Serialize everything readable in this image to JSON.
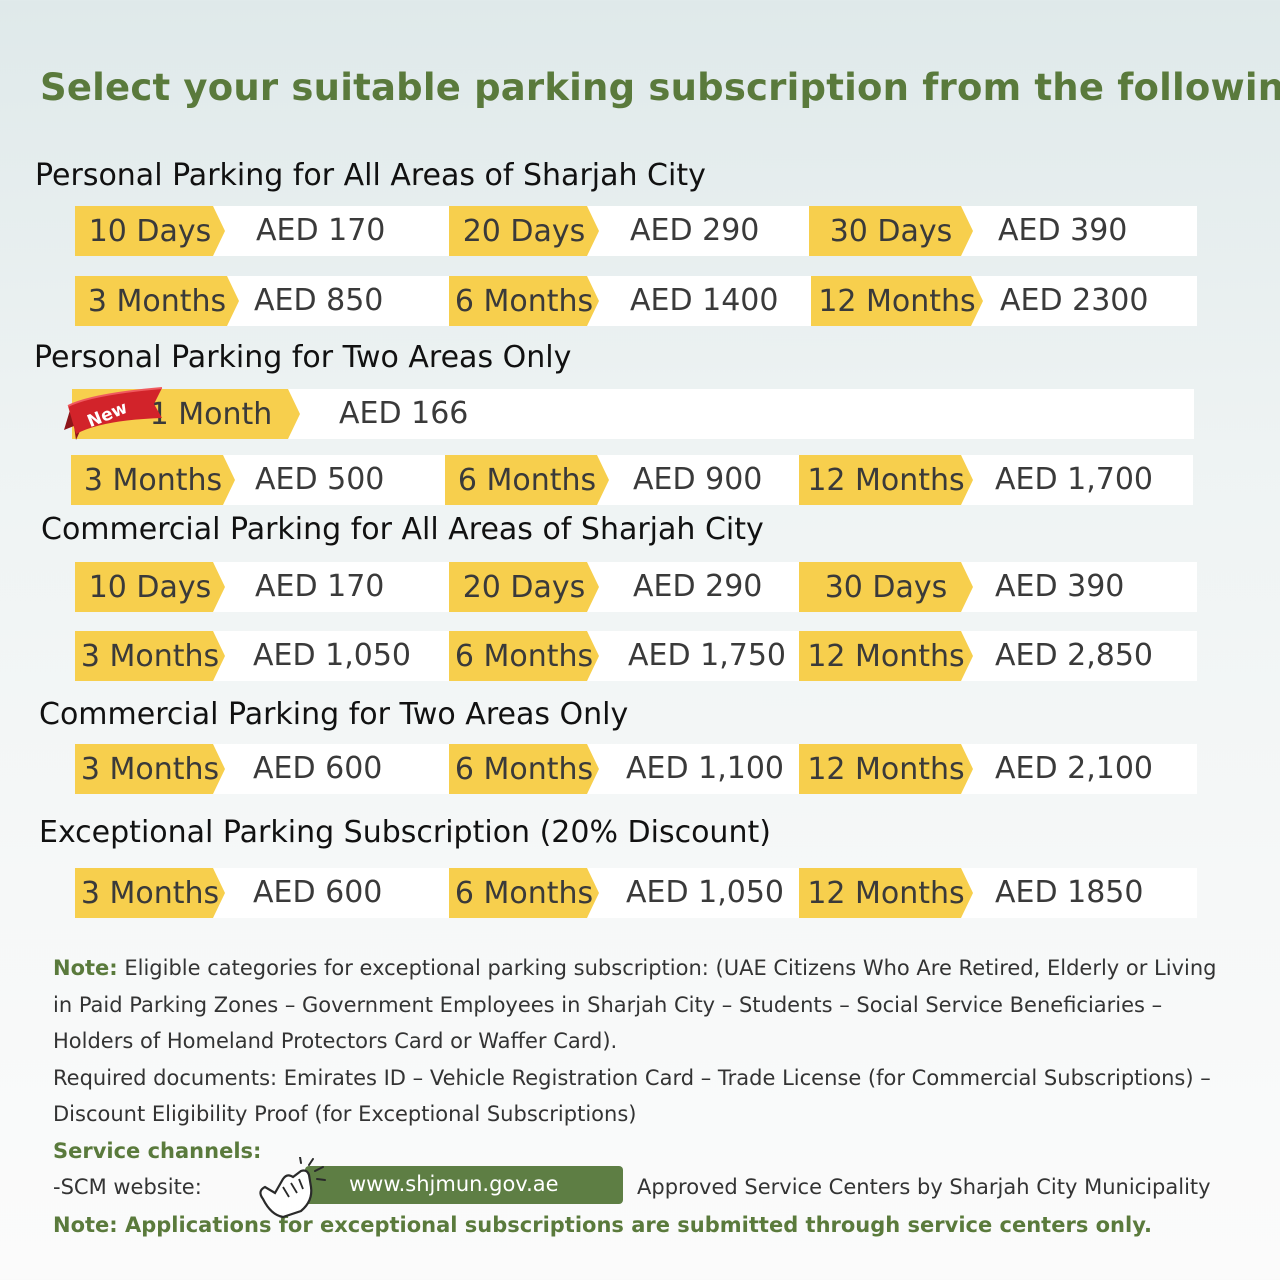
{
  "title": "Select your suitable parking subscription from the following:",
  "sections": [
    {
      "title": "Personal Parking for All Areas of Sharjah City",
      "rows": [
        [
          {
            "label": "10 Days",
            "price": "AED 170"
          },
          {
            "label": "20 Days",
            "price": "AED 290"
          },
          {
            "label": "30 Days",
            "price": "AED 390"
          }
        ],
        [
          {
            "label": "3 Months",
            "price": "AED 850"
          },
          {
            "label": "6 Months",
            "price": "AED 1400"
          },
          {
            "label": "12 Months",
            "price": "AED 2300"
          }
        ]
      ]
    },
    {
      "title": "Personal Parking for Two Areas Only",
      "featured": {
        "badge": "New",
        "label": "1 Month",
        "price": "AED 166"
      },
      "rows": [
        [
          {
            "label": "3 Months",
            "price": "AED 500"
          },
          {
            "label": "6 Months",
            "price": "AED 900"
          },
          {
            "label": "12 Months",
            "price": "AED 1,700"
          }
        ]
      ]
    },
    {
      "title": "Commercial Parking for All Areas of Sharjah City",
      "rows": [
        [
          {
            "label": "10 Days",
            "price": "AED 170"
          },
          {
            "label": "20 Days",
            "price": "AED 290"
          },
          {
            "label": "30 Days",
            "price": "AED 390"
          }
        ],
        [
          {
            "label": "3 Months",
            "price": "AED 1,050"
          },
          {
            "label": "6 Months",
            "price": "AED 1,750"
          },
          {
            "label": "12 Months",
            "price": "AED 2,850"
          }
        ]
      ]
    },
    {
      "title": "Commercial Parking for Two Areas Only",
      "rows": [
        [
          {
            "label": "3 Months",
            "price": "AED 600"
          },
          {
            "label": "6 Months",
            "price": "AED 1,100"
          },
          {
            "label": "12 Months",
            "price": "AED 2,100"
          }
        ]
      ]
    },
    {
      "title": "Exceptional Parking Subscription (20% Discount)",
      "rows": [
        [
          {
            "label": "3 Months",
            "price": "AED 600"
          },
          {
            "label": "6 Months",
            "price": "AED 1,050"
          },
          {
            "label": "12 Months",
            "price": "AED 1850"
          }
        ]
      ]
    }
  ],
  "notes": {
    "note_label": "Note:",
    "note_text": " Eligible categories for exceptional parking subscription: (UAE Citizens Who Are Retired, Elderly or Living in Paid Parking Zones – Government Employees in Sharjah City – Students – Social Service Beneficiaries – Holders of Homeland Protectors Card or Waffer Card).",
    "documents_text": "Required documents: Emirates ID – Vehicle Registration Card – Trade License (for Commercial Subscriptions) – Discount Eligibility Proof (for Exceptional Subscriptions)",
    "channels_title": "Service channels:",
    "website_label": "-SCM website:",
    "website_url": "www.shjmun.gov.ae",
    "centers_text": "Approved Service Centers by Sharjah City Municipality",
    "final_note": "Note: Applications for exceptional subscriptions are submitted through service centers only."
  },
  "colors": {
    "accent_green": "#5a7a3c",
    "pill_yellow": "#f7cf4d",
    "ribbon_red": "#d2232a"
  },
  "icons": {
    "ribbon": "new-ribbon-icon",
    "cursor": "hand-pointer-icon"
  }
}
